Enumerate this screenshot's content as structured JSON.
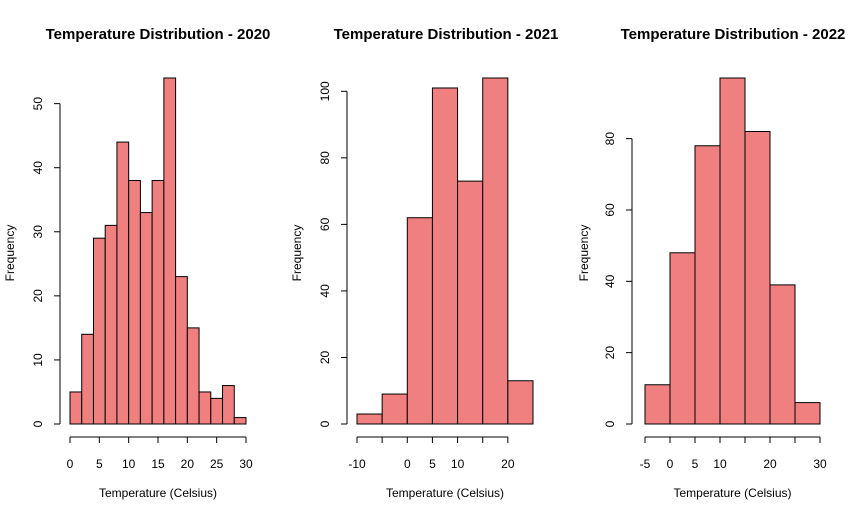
{
  "colors": {
    "bar_fill": "#f08080",
    "bar_stroke": "#000000"
  },
  "chart_data": [
    {
      "type": "bar",
      "subtype": "histogram",
      "title": "Temperature Distribution - 2020",
      "xlabel": "Temperature (Celsius)",
      "ylabel": "Frequency",
      "bin_edges": [
        0,
        2,
        4,
        6,
        8,
        10,
        12,
        14,
        16,
        18,
        20,
        22,
        24,
        26,
        28,
        30
      ],
      "values": [
        5,
        14,
        29,
        31,
        44,
        38,
        33,
        38,
        54,
        23,
        15,
        5,
        4,
        6,
        1
      ],
      "xticks": [
        0,
        5,
        10,
        15,
        20,
        25,
        30
      ],
      "yticks": [
        0,
        10,
        20,
        30,
        40,
        50
      ],
      "xlim": [
        0,
        30
      ],
      "ylim": [
        0,
        54
      ],
      "grid": false
    },
    {
      "type": "bar",
      "subtype": "histogram",
      "title": "Temperature Distribution - 2021",
      "xlabel": "Temperature (Celsius)",
      "ylabel": "Frequency",
      "bin_edges": [
        -10,
        -5,
        0,
        5,
        10,
        15,
        20,
        25
      ],
      "values": [
        3,
        9,
        62,
        101,
        73,
        104,
        13
      ],
      "xticks": [
        -10,
        0,
        5,
        10,
        20
      ],
      "yticks": [
        0,
        20,
        40,
        60,
        80,
        100
      ],
      "xlim": [
        -10,
        25
      ],
      "ylim": [
        0,
        104
      ],
      "grid": false
    },
    {
      "type": "bar",
      "subtype": "histogram",
      "title": "Temperature Distribution - 2022",
      "xlabel": "Temperature (Celsius)",
      "ylabel": "Frequency",
      "bin_edges": [
        -5,
        0,
        5,
        10,
        15,
        20,
        25,
        30
      ],
      "values": [
        11,
        48,
        78,
        97,
        82,
        39,
        6
      ],
      "xticks": [
        -5,
        0,
        5,
        10,
        20,
        30
      ],
      "yticks": [
        0,
        20,
        40,
        60,
        80
      ],
      "xlim": [
        -5,
        30
      ],
      "ylim": [
        0,
        97
      ],
      "grid": false
    }
  ]
}
